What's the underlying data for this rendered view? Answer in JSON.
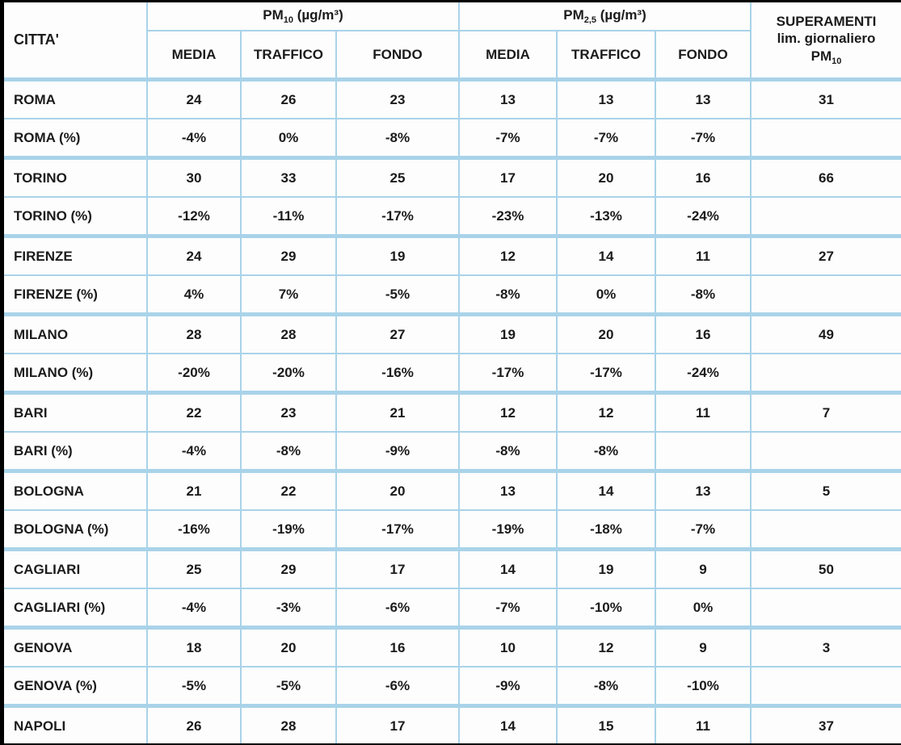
{
  "accent_border_color": "#a9d3e9",
  "text_color": "#1b1b1b",
  "table": {
    "header": {
      "citta": "CITTA'",
      "pm10": {
        "prefix": "PM",
        "sub": "10",
        "suffix": " (µg/m³)"
      },
      "pm25": {
        "prefix": "PM",
        "sub": "2,5",
        "suffix": " (µg/m³)"
      },
      "subcols": [
        "MEDIA",
        "TRAFFICO",
        "FONDO"
      ],
      "superamenti": {
        "line1": "SUPERAMENTI",
        "line2": "lim. giornaliero",
        "line3_prefix": "PM",
        "line3_sub": "10"
      }
    },
    "rows": [
      {
        "label": "ROMA",
        "type": "city",
        "cells": [
          "24",
          "26",
          "23",
          "13",
          "13",
          "13",
          "31"
        ]
      },
      {
        "label": "ROMA (%)",
        "type": "pct",
        "cells": [
          "-4%",
          "0%",
          "-8%",
          "-7%",
          "-7%",
          "-7%",
          ""
        ]
      },
      {
        "label": "TORINO",
        "type": "city",
        "cells": [
          "30",
          "33",
          "25",
          "17",
          "20",
          "16",
          "66"
        ]
      },
      {
        "label": "TORINO (%)",
        "type": "pct",
        "cells": [
          "-12%",
          "-11%",
          "-17%",
          "-23%",
          "-13%",
          "-24%",
          ""
        ]
      },
      {
        "label": "FIRENZE",
        "type": "city",
        "cells": [
          "24",
          "29",
          "19",
          "12",
          "14",
          "11",
          "27"
        ]
      },
      {
        "label": "FIRENZE (%)",
        "type": "pct",
        "cells": [
          "4%",
          "7%",
          "-5%",
          "-8%",
          "0%",
          "-8%",
          ""
        ]
      },
      {
        "label": "MILANO",
        "type": "city",
        "cells": [
          "28",
          "28",
          "27",
          "19",
          "20",
          "16",
          "49"
        ]
      },
      {
        "label": "MILANO (%)",
        "type": "pct",
        "cells": [
          "-20%",
          "-20%",
          "-16%",
          "-17%",
          "-17%",
          "-24%",
          ""
        ]
      },
      {
        "label": "BARI",
        "type": "city",
        "cells": [
          "22",
          "23",
          "21",
          "12",
          "12",
          "11",
          "7"
        ]
      },
      {
        "label": "BARI (%)",
        "type": "pct",
        "cells": [
          "-4%",
          "-8%",
          "-9%",
          "-8%",
          "-8%",
          "",
          ""
        ]
      },
      {
        "label": "BOLOGNA",
        "type": "city",
        "cells": [
          "21",
          "22",
          "20",
          "13",
          "14",
          "13",
          "5"
        ]
      },
      {
        "label": "BOLOGNA (%)",
        "type": "pct",
        "cells": [
          "-16%",
          "-19%",
          "-17%",
          "-19%",
          "-18%",
          "-7%",
          ""
        ]
      },
      {
        "label": "CAGLIARI",
        "type": "city",
        "cells": [
          "25",
          "29",
          "17",
          "14",
          "19",
          "9",
          "50"
        ]
      },
      {
        "label": "CAGLIARI (%)",
        "type": "pct",
        "cells": [
          "-4%",
          "-3%",
          "-6%",
          "-7%",
          "-10%",
          "0%",
          ""
        ]
      },
      {
        "label": "GENOVA",
        "type": "city",
        "cells": [
          "18",
          "20",
          "16",
          "10",
          "12",
          "9",
          "3"
        ]
      },
      {
        "label": "GENOVA (%)",
        "type": "pct",
        "cells": [
          "-5%",
          "-5%",
          "-6%",
          "-9%",
          "-8%",
          "-10%",
          ""
        ]
      },
      {
        "label": "NAPOLI",
        "type": "city",
        "cells": [
          "26",
          "28",
          "17",
          "14",
          "15",
          "11",
          "37"
        ]
      }
    ]
  },
  "chart_data": {
    "type": "table",
    "title": "PM10 e PM2.5 per città italiane",
    "column_groups": [
      "CITTA'",
      "PM10 (µg/m³)",
      "PM2,5 (µg/m³)",
      "SUPERAMENTI lim. giornaliero PM10"
    ],
    "columns": [
      "CITTA'",
      "PM10 MEDIA",
      "PM10 TRAFFICO",
      "PM10 FONDO",
      "PM2,5 MEDIA",
      "PM2,5 TRAFFICO",
      "PM2,5 FONDO",
      "SUPERAMENTI lim. giornaliero PM10"
    ],
    "rows": [
      [
        "ROMA",
        24,
        26,
        23,
        13,
        13,
        13,
        31
      ],
      [
        "ROMA (%)",
        "-4%",
        "0%",
        "-8%",
        "-7%",
        "-7%",
        "-7%",
        null
      ],
      [
        "TORINO",
        30,
        33,
        25,
        17,
        20,
        16,
        66
      ],
      [
        "TORINO (%)",
        "-12%",
        "-11%",
        "-17%",
        "-23%",
        "-13%",
        "-24%",
        null
      ],
      [
        "FIRENZE",
        24,
        29,
        19,
        12,
        14,
        11,
        27
      ],
      [
        "FIRENZE (%)",
        "4%",
        "7%",
        "-5%",
        "-8%",
        "0%",
        "-8%",
        null
      ],
      [
        "MILANO",
        28,
        28,
        27,
        19,
        20,
        16,
        49
      ],
      [
        "MILANO (%)",
        "-20%",
        "-20%",
        "-16%",
        "-17%",
        "-17%",
        "-24%",
        null
      ],
      [
        "BARI",
        22,
        23,
        21,
        12,
        12,
        11,
        7
      ],
      [
        "BARI (%)",
        "-4%",
        "-8%",
        "-9%",
        "-8%",
        "-8%",
        null,
        null
      ],
      [
        "BOLOGNA",
        21,
        22,
        20,
        13,
        14,
        13,
        5
      ],
      [
        "BOLOGNA (%)",
        "-16%",
        "-19%",
        "-17%",
        "-19%",
        "-18%",
        "-7%",
        null
      ],
      [
        "CAGLIARI",
        25,
        29,
        17,
        14,
        19,
        9,
        50
      ],
      [
        "CAGLIARI (%)",
        "-4%",
        "-3%",
        "-6%",
        "-7%",
        "-10%",
        "0%",
        null
      ],
      [
        "GENOVA",
        18,
        20,
        16,
        10,
        12,
        9,
        3
      ],
      [
        "GENOVA (%)",
        "-5%",
        "-5%",
        "-6%",
        "-9%",
        "-8%",
        "-10%",
        null
      ],
      [
        "NAPOLI",
        26,
        28,
        17,
        14,
        15,
        11,
        37
      ]
    ]
  }
}
